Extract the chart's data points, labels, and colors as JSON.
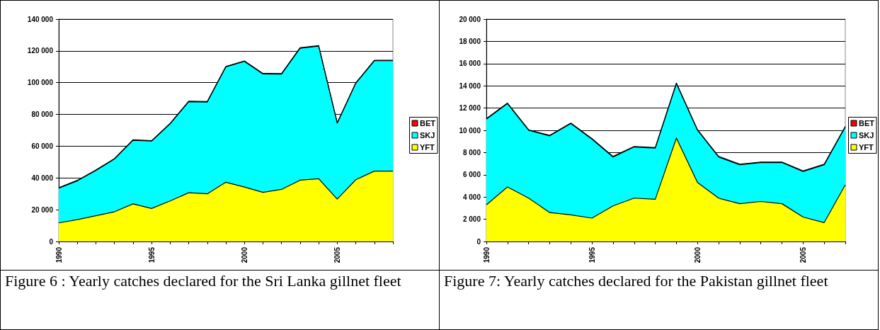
{
  "chart_data": [
    {
      "type": "area",
      "stacked": true,
      "legend": "right",
      "grid": "y",
      "marker": "none",
      "categories": [
        "1990",
        null,
        null,
        null,
        null,
        "1995",
        null,
        null,
        null,
        null,
        "2000",
        null,
        null,
        null,
        null,
        "2005",
        null,
        null,
        null
      ],
      "series": [
        {
          "name": "YFT",
          "color": "#ffff00",
          "values": [
            11700,
            13800,
            16200,
            18700,
            23700,
            20800,
            25500,
            30700,
            30000,
            37300,
            34300,
            30900,
            32800,
            38600,
            39500,
            26700,
            38900,
            44300,
            44300
          ]
        },
        {
          "name": "SKJ",
          "color": "#00ffff",
          "values": [
            21900,
            24400,
            28500,
            33200,
            40000,
            42400,
            48600,
            57300,
            57800,
            72600,
            79100,
            74600,
            72600,
            83100,
            83500,
            47800,
            60700,
            69500,
            69500
          ]
        },
        {
          "name": "BET",
          "color": "#ff0000",
          "values": [
            300,
            300,
            300,
            300,
            300,
            300,
            300,
            300,
            300,
            300,
            300,
            300,
            300,
            300,
            300,
            300,
            300,
            300,
            300
          ]
        }
      ],
      "ylim": [
        0,
        140000
      ],
      "yticks": [
        0,
        {
          "value": 20000,
          "label": "20 000"
        },
        {
          "value": 40000,
          "label": "40 000"
        },
        {
          "value": 60000,
          "label": "60 000"
        },
        {
          "value": 80000,
          "label": "80 000"
        },
        {
          "value": 100000,
          "label": "100 000"
        },
        {
          "value": 120000,
          "label": "120 000"
        },
        {
          "value": 140000,
          "label": "140 000"
        }
      ],
      "annotations": [
        "Figure 6 : Yearly catches declared for the Sri Lanka gillnet  fleet"
      ]
    },
    {
      "type": "area",
      "stacked": true,
      "legend": "right",
      "grid": "y",
      "marker": "none",
      "categories": [
        "1990",
        null,
        null,
        null,
        null,
        "1995",
        null,
        null,
        null,
        null,
        "2000",
        null,
        null,
        null,
        null,
        "2005",
        null,
        null
      ],
      "series": [
        {
          "name": "YFT",
          "color": "#ffff00",
          "values": [
            3300,
            4900,
            3900,
            2600,
            2400,
            2100,
            3200,
            3900,
            3800,
            9300,
            5300,
            3900,
            3400,
            3600,
            3400,
            2200,
            1700,
            5100
          ]
        },
        {
          "name": "SKJ",
          "color": "#00ffff",
          "values": [
            7700,
            7500,
            6100,
            6900,
            8200,
            7100,
            4400,
            4600,
            4600,
            4900,
            4700,
            3700,
            3500,
            3500,
            3700,
            4100,
            5200,
            5200
          ]
        },
        {
          "name": "BET",
          "color": "#ff0000",
          "values": [
            50,
            50,
            50,
            50,
            50,
            50,
            50,
            50,
            50,
            50,
            50,
            50,
            50,
            50,
            50,
            50,
            50,
            50
          ]
        }
      ],
      "ylim": [
        0,
        20000
      ],
      "yticks": [
        0,
        {
          "value": 2000,
          "label": "2 000"
        },
        {
          "value": 4000,
          "label": "4 000"
        },
        {
          "value": 6000,
          "label": "6 000"
        },
        {
          "value": 8000,
          "label": "8 000"
        },
        {
          "value": 10000,
          "label": "10 000"
        },
        {
          "value": 12000,
          "label": "12 000"
        },
        {
          "value": 14000,
          "label": "14 000"
        },
        {
          "value": 16000,
          "label": "16 000"
        },
        {
          "value": 18000,
          "label": "18 000"
        },
        {
          "value": 20000,
          "label": "20 000"
        }
      ],
      "annotations": [
        "Figure 7: Yearly catches declared for the Pakistan gillnet  fleet"
      ]
    }
  ]
}
